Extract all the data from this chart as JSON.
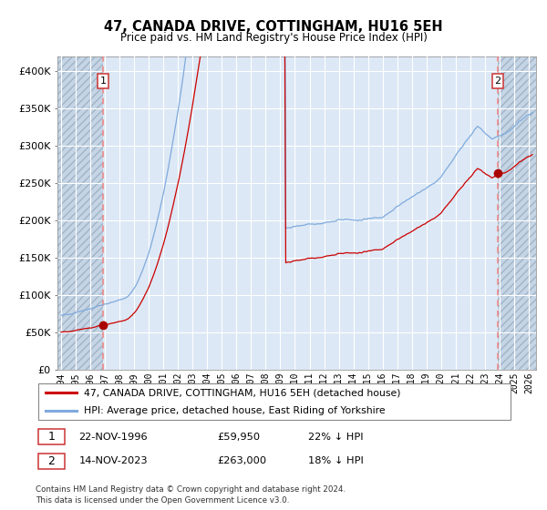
{
  "title": "47, CANADA DRIVE, COTTINGHAM, HU16 5EH",
  "subtitle": "Price paid vs. HM Land Registry's House Price Index (HPI)",
  "sale1_date": "22-NOV-1996",
  "sale1_price": 59950,
  "sale1_year": 1996.88,
  "sale2_date": "14-NOV-2023",
  "sale2_price": 263000,
  "sale2_year": 2023.88,
  "legend_property": "47, CANADA DRIVE, COTTINGHAM, HU16 5EH (detached house)",
  "legend_hpi": "HPI: Average price, detached house, East Riding of Yorkshire",
  "footer1": "Contains HM Land Registry data © Crown copyright and database right 2024.",
  "footer2": "This data is licensed under the Open Government Licence v3.0.",
  "sale1_hpi_note": "22% ↓ HPI",
  "sale2_hpi_note": "18% ↓ HPI",
  "hpi_color": "#7faadd",
  "property_color": "#cc0000",
  "vline_color": "#ee8888",
  "marker_color": "#aa0000",
  "plot_bg": "#dce8f5",
  "hatch_bg": "#c5d5e5",
  "grid_color": "#ffffff",
  "ylim": [
    0,
    420000
  ],
  "xlim_start": 1993.75,
  "xlim_end": 2026.5,
  "yticks": [
    0,
    50000,
    100000,
    150000,
    200000,
    250000,
    300000,
    350000,
    400000
  ]
}
